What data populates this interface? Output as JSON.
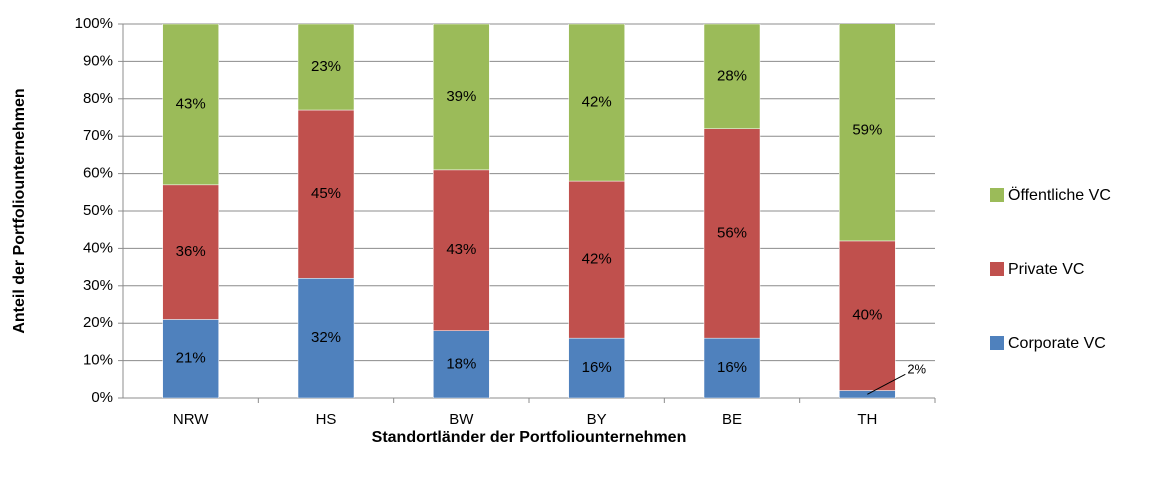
{
  "chart_data": {
    "type": "stacked_bar",
    "x_label": "Standortländer der Portfoliounternehmen",
    "y_label": "Anteil der Portfoliounternehmen",
    "categories": [
      "NRW",
      "HS",
      "BW",
      "BY",
      "BE",
      "TH"
    ],
    "series": [
      {
        "name": "Corporate VC",
        "color": "#4f81bd",
        "values": [
          21,
          32,
          18,
          16,
          16,
          2
        ],
        "value_labels": [
          "21%",
          "32%",
          "18%",
          "16%",
          "16%",
          "2%"
        ]
      },
      {
        "name": "Private VC",
        "color": "#c0504d",
        "values": [
          36,
          45,
          43,
          42,
          56,
          40
        ],
        "value_labels": [
          "36%",
          "45%",
          "43%",
          "42%",
          "56%",
          "40%"
        ]
      },
      {
        "name": "Öffentliche VC",
        "color": "#9bbb59",
        "values": [
          43,
          23,
          39,
          42,
          28,
          59
        ],
        "value_labels": [
          "43%",
          "23%",
          "39%",
          "42%",
          "28%",
          "59%"
        ]
      }
    ],
    "ylim": [
      0,
      100
    ],
    "yticks": [
      {
        "value": 0,
        "label": "0%"
      },
      {
        "value": 10,
        "label": "10%"
      },
      {
        "value": 20,
        "label": "20%"
      },
      {
        "value": 30,
        "label": "30%"
      },
      {
        "value": 40,
        "label": "40%"
      },
      {
        "value": 50,
        "label": "50%"
      },
      {
        "value": 60,
        "label": "60%"
      },
      {
        "value": 70,
        "label": "70%"
      },
      {
        "value": 80,
        "label": "80%"
      },
      {
        "value": 90,
        "label": "90%"
      },
      {
        "value": 100,
        "label": "100%"
      }
    ],
    "grid": true,
    "legend": "right"
  }
}
